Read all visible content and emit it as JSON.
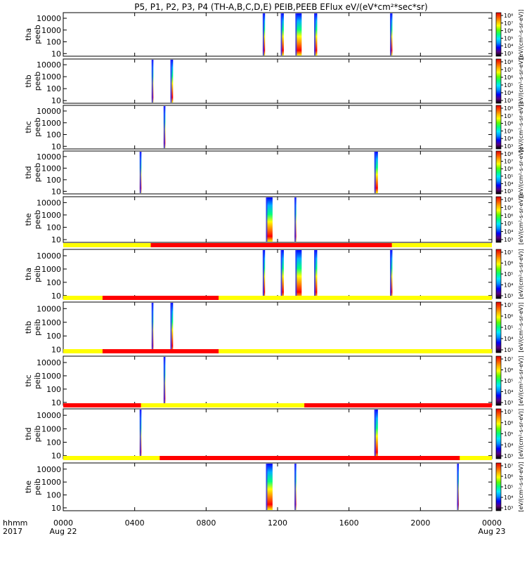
{
  "title": "P5, P1, P2, P3, P4 (TH-A,B,C,D,E) PEIB,PEEB EFlux eV/(eV*cm²*sec*sr)",
  "time_axis": {
    "label_line1": "hhmm",
    "label_line2": "2017",
    "range_hours": [
      0,
      24
    ],
    "ticks": [
      {
        "hour": 0,
        "label": "0000",
        "date": "Aug 22"
      },
      {
        "hour": 4,
        "label": "0400",
        "date": ""
      },
      {
        "hour": 8,
        "label": "0800",
        "date": ""
      },
      {
        "hour": 12,
        "label": "1200",
        "date": ""
      },
      {
        "hour": 16,
        "label": "1600",
        "date": ""
      },
      {
        "hour": 20,
        "label": "2000",
        "date": ""
      },
      {
        "hour": 24,
        "label": "0000",
        "date": "Aug 23"
      }
    ]
  },
  "energy_axis": {
    "scale": "log",
    "range_eV": [
      6,
      30000
    ],
    "tick_values": [
      10,
      100,
      1000,
      10000
    ],
    "tick_labels": [
      "10",
      "100",
      "1000",
      "10000"
    ]
  },
  "colorbar": {
    "units": "[eV/(cm²-s-sr-eV)]",
    "electron_labels": [
      "10³",
      "10⁴",
      "10⁵",
      "10⁶",
      "10⁷",
      "10⁸"
    ],
    "ion_labels": [
      "10³",
      "10⁴",
      "10⁵",
      "10⁶",
      "10⁷"
    ],
    "colors": [
      "#000000",
      "#5a0080",
      "#0000ff",
      "#0090ff",
      "#00e8ff",
      "#00ff80",
      "#60ff00",
      "#ffff00",
      "#ffb000",
      "#ff5000",
      "#e00000"
    ]
  },
  "mode_bar_colors": {
    "fast": "#ff0000",
    "slow": "#ffff00"
  },
  "chart_data": {
    "type": "heatmap",
    "panels": [
      {
        "label_line1": "tha",
        "label_line2": "peeb",
        "mode_bar": null,
        "bursts": [
          [
            11.17,
            11.3
          ],
          [
            12.18,
            12.35
          ],
          [
            13.0,
            13.35
          ],
          [
            14.05,
            14.22
          ],
          [
            18.3,
            18.43
          ]
        ]
      },
      {
        "label_line1": "thb",
        "label_line2": "peeb",
        "mode_bar": null,
        "bursts": [
          [
            4.95,
            5.05
          ],
          [
            6.0,
            6.15
          ]
        ]
      },
      {
        "label_line1": "thc",
        "label_line2": "peeb",
        "mode_bar": null,
        "bursts": [
          [
            5.62,
            5.72
          ]
        ]
      },
      {
        "label_line1": "thd",
        "label_line2": "peeb",
        "mode_bar": null,
        "bursts": [
          [
            4.28,
            4.38
          ],
          [
            17.42,
            17.62
          ]
        ]
      },
      {
        "label_line1": "the",
        "label_line2": "peeb",
        "mode_bar": null,
        "bursts": [
          [
            11.35,
            11.72
          ],
          [
            12.95,
            13.05
          ]
        ]
      },
      {
        "label_line1": "tha",
        "label_line2": "peib",
        "mode_bar": {
          "default": "slow",
          "fast": [
            [
              4.9,
              18.4
            ]
          ]
        },
        "bursts": [
          [
            11.17,
            11.3
          ],
          [
            12.18,
            12.35
          ],
          [
            13.0,
            13.35
          ],
          [
            14.05,
            14.22
          ],
          [
            18.3,
            18.43
          ]
        ]
      },
      {
        "label_line1": "thb",
        "label_line2": "peib",
        "mode_bar": {
          "default": "slow",
          "fast": [
            [
              2.2,
              8.7
            ]
          ]
        },
        "bursts": [
          [
            4.95,
            5.05
          ],
          [
            6.0,
            6.15
          ]
        ]
      },
      {
        "label_line1": "thc",
        "label_line2": "peib",
        "mode_bar": {
          "default": "slow",
          "fast": [
            [
              2.2,
              8.7
            ]
          ]
        },
        "bursts": [
          [
            5.62,
            5.72
          ]
        ]
      },
      {
        "label_line1": "thd",
        "label_line2": "peib",
        "mode_bar": {
          "default": "fast",
          "slow": [
            [
              4.35,
              13.5
            ]
          ]
        },
        "bursts": [
          [
            4.28,
            4.38
          ],
          [
            17.42,
            17.62
          ]
        ]
      },
      {
        "label_line1": "the",
        "label_line2": "peib",
        "mode_bar": {
          "default": "slow",
          "fast": [
            [
              5.4,
              22.2
            ]
          ]
        },
        "bursts": [
          [
            11.35,
            11.72
          ],
          [
            12.95,
            13.05
          ],
          [
            22.05,
            22.15
          ]
        ]
      }
    ]
  }
}
